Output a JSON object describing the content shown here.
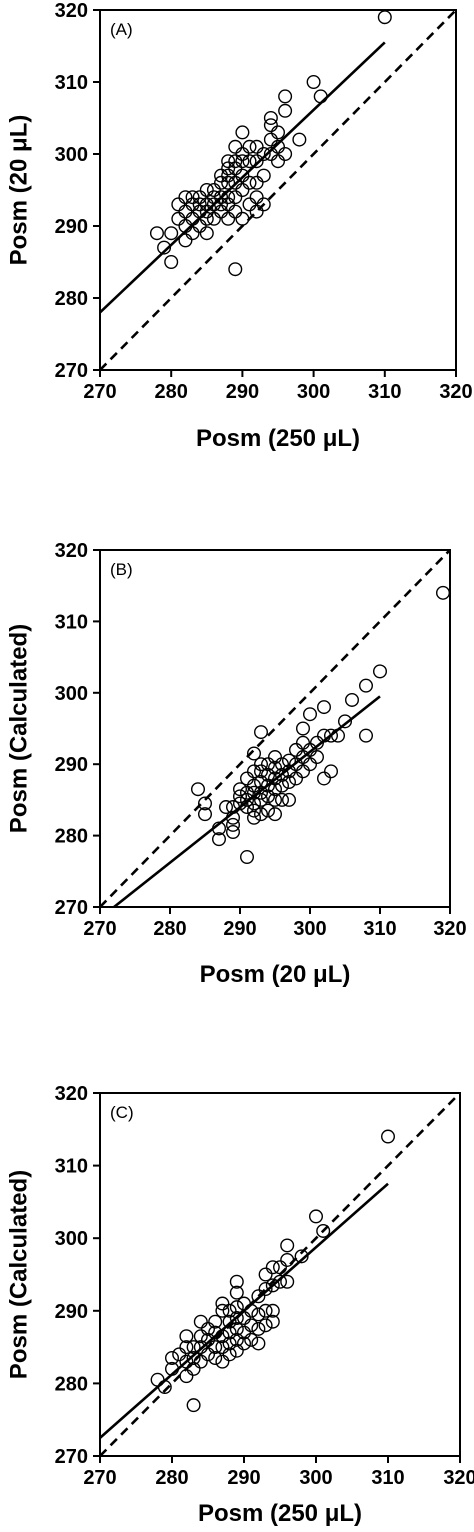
{
  "chart_data": [
    {
      "type": "scatter",
      "panel_label": "(A)",
      "xlabel": "Posm (250 μL)",
      "ylabel": "Posm (20 μL)",
      "xlim": [
        270,
        320
      ],
      "ylim": [
        270,
        320
      ],
      "xticks": [
        "270",
        "280",
        "290",
        "300",
        "310",
        "320"
      ],
      "yticks": [
        "270",
        "280",
        "290",
        "300",
        "310",
        "320"
      ],
      "series": [
        {
          "points": [
            [
              278,
              289
            ],
            [
              279,
              287
            ],
            [
              280,
              285
            ],
            [
              280,
              289
            ],
            [
              281,
              291
            ],
            [
              281,
              293
            ],
            [
              282,
              288
            ],
            [
              282,
              290
            ],
            [
              282,
              292
            ],
            [
              282,
              294
            ],
            [
              283,
              289
            ],
            [
              283,
              291
            ],
            [
              283,
              293
            ],
            [
              283,
              294
            ],
            [
              284,
              290
            ],
            [
              284,
              292
            ],
            [
              284,
              293
            ],
            [
              284,
              294
            ],
            [
              285,
              289
            ],
            [
              285,
              291
            ],
            [
              285,
              292
            ],
            [
              285,
              293
            ],
            [
              285,
              295
            ],
            [
              286,
              291
            ],
            [
              286,
              293
            ],
            [
              286,
              294
            ],
            [
              286,
              295
            ],
            [
              287,
              292
            ],
            [
              287,
              293
            ],
            [
              287,
              294
            ],
            [
              287,
              296
            ],
            [
              287,
              297
            ],
            [
              288,
              291
            ],
            [
              288,
              293
            ],
            [
              288,
              294
            ],
            [
              288,
              296
            ],
            [
              288,
              297
            ],
            [
              288,
              298
            ],
            [
              288,
              299
            ],
            [
              289,
              284
            ],
            [
              289,
              292
            ],
            [
              289,
              294
            ],
            [
              289,
              296
            ],
            [
              289,
              298
            ],
            [
              289,
              299
            ],
            [
              289,
              301
            ],
            [
              290,
              291
            ],
            [
              290,
              295
            ],
            [
              290,
              297
            ],
            [
              290,
              299
            ],
            [
              290,
              300
            ],
            [
              290,
              303
            ],
            [
              291,
              293
            ],
            [
              291,
              296
            ],
            [
              291,
              299
            ],
            [
              291,
              301
            ],
            [
              292,
              292
            ],
            [
              292,
              294
            ],
            [
              292,
              296
            ],
            [
              292,
              299
            ],
            [
              292,
              301
            ],
            [
              293,
              293
            ],
            [
              293,
              297
            ],
            [
              293,
              300
            ],
            [
              294,
              300
            ],
            [
              294,
              302
            ],
            [
              294,
              304
            ],
            [
              294,
              305
            ],
            [
              295,
              299
            ],
            [
              295,
              301
            ],
            [
              295,
              303
            ],
            [
              296,
              300
            ],
            [
              296,
              306
            ],
            [
              296,
              308
            ],
            [
              298,
              302
            ],
            [
              300,
              310
            ],
            [
              301,
              308
            ],
            [
              310,
              319
            ]
          ]
        }
      ],
      "regression_line": [
        [
          270,
          278
        ],
        [
          310,
          315.5
        ]
      ],
      "identity_line": [
        [
          270,
          270
        ],
        [
          320,
          320
        ]
      ]
    },
    {
      "type": "scatter",
      "panel_label": "(B)",
      "xlabel": "Posm (20 μL)",
      "ylabel": "Posm (Calculated)",
      "xlim": [
        270,
        320
      ],
      "ylim": [
        270,
        320
      ],
      "xticks": [
        "270",
        "280",
        "290",
        "300",
        "310",
        "320"
      ],
      "yticks": [
        "270",
        "280",
        "290",
        "300",
        "310",
        "320"
      ],
      "series": [
        {
          "points": [
            [
              284,
              286.5
            ],
            [
              285,
              283
            ],
            [
              285,
              284.5
            ],
            [
              287,
              279.5
            ],
            [
              287,
              281
            ],
            [
              288,
              284
            ],
            [
              289,
              280.5
            ],
            [
              289,
              281.5
            ],
            [
              289,
              282.5
            ],
            [
              289,
              284
            ],
            [
              290,
              284.5
            ],
            [
              290,
              285.5
            ],
            [
              290,
              286.5
            ],
            [
              291,
              277
            ],
            [
              291,
              284
            ],
            [
              291,
              285
            ],
            [
              291,
              286
            ],
            [
              291,
              288
            ],
            [
              292,
              282.5
            ],
            [
              292,
              283.5
            ],
            [
              292,
              284.5
            ],
            [
              292,
              286
            ],
            [
              292,
              287
            ],
            [
              292,
              289
            ],
            [
              292,
              291.5
            ],
            [
              293,
              283
            ],
            [
              293,
              285
            ],
            [
              293,
              286
            ],
            [
              293,
              287.5
            ],
            [
              293,
              289
            ],
            [
              293,
              290
            ],
            [
              293,
              294.5
            ],
            [
              294,
              283.5
            ],
            [
              294,
              285.5
            ],
            [
              294,
              287
            ],
            [
              294,
              288.5
            ],
            [
              294,
              290
            ],
            [
              295,
              283
            ],
            [
              295,
              285
            ],
            [
              295,
              286.5
            ],
            [
              295,
              288
            ],
            [
              295,
              289.5
            ],
            [
              295,
              291
            ],
            [
              296,
              285
            ],
            [
              296,
              287
            ],
            [
              296,
              288.5
            ],
            [
              296,
              290
            ],
            [
              297,
              285
            ],
            [
              297,
              287.5
            ],
            [
              297,
              289
            ],
            [
              297,
              290.5
            ],
            [
              298,
              288
            ],
            [
              298,
              290
            ],
            [
              298,
              292
            ],
            [
              299,
              289
            ],
            [
              299,
              291
            ],
            [
              299,
              293
            ],
            [
              299,
              295
            ],
            [
              300,
              290
            ],
            [
              300,
              292
            ],
            [
              300,
              297
            ],
            [
              301,
              291
            ],
            [
              301,
              293
            ],
            [
              302,
              288
            ],
            [
              302,
              294
            ],
            [
              302,
              298
            ],
            [
              303,
              289
            ],
            [
              303,
              294
            ],
            [
              304,
              294
            ],
            [
              305,
              296
            ],
            [
              306,
              299
            ],
            [
              308,
              294
            ],
            [
              308,
              301
            ],
            [
              310,
              303
            ],
            [
              319,
              314
            ]
          ]
        }
      ],
      "regression_line": [
        [
          272,
          270
        ],
        [
          310,
          299.5
        ]
      ],
      "identity_line": [
        [
          270,
          270
        ],
        [
          320,
          320
        ]
      ]
    },
    {
      "type": "scatter",
      "panel_label": "(C)",
      "xlabel": "Posm (250 μL)",
      "ylabel": "Posm (Calculated)",
      "xlim": [
        270,
        320
      ],
      "ylim": [
        270,
        320
      ],
      "xticks": [
        "270",
        "280",
        "290",
        "300",
        "310",
        "320"
      ],
      "yticks": [
        "270",
        "280",
        "290",
        "300",
        "310",
        "320"
      ],
      "series": [
        {
          "points": [
            [
              278,
              280.5
            ],
            [
              279,
              279.5
            ],
            [
              280,
              282
            ],
            [
              280,
              283.5
            ],
            [
              281,
              284
            ],
            [
              282,
              281
            ],
            [
              282,
              283
            ],
            [
              282,
              285
            ],
            [
              282,
              286.5
            ],
            [
              283,
              277
            ],
            [
              283,
              282
            ],
            [
              283,
              283.5
            ],
            [
              283,
              285
            ],
            [
              284,
              283
            ],
            [
              284,
              285
            ],
            [
              284,
              286.5
            ],
            [
              284,
              288.5
            ],
            [
              285,
              284
            ],
            [
              285,
              286
            ],
            [
              285,
              287.5
            ],
            [
              286,
              283.5
            ],
            [
              286,
              285
            ],
            [
              286,
              287
            ],
            [
              286,
              288.5
            ],
            [
              287,
              283
            ],
            [
              287,
              285
            ],
            [
              287,
              286.5
            ],
            [
              287,
              290
            ],
            [
              287,
              291
            ],
            [
              288,
              284
            ],
            [
              288,
              285.5
            ],
            [
              288,
              287
            ],
            [
              288,
              288.5
            ],
            [
              288,
              290
            ],
            [
              289,
              284.5
            ],
            [
              289,
              286
            ],
            [
              289,
              287.5
            ],
            [
              289,
              289
            ],
            [
              289,
              290.5
            ],
            [
              289,
              292.5
            ],
            [
              289,
              294
            ],
            [
              290,
              285.5
            ],
            [
              290,
              287
            ],
            [
              290,
              289
            ],
            [
              290,
              291
            ],
            [
              291,
              286
            ],
            [
              291,
              288
            ],
            [
              291,
              290
            ],
            [
              292,
              285.5
            ],
            [
              292,
              287.5
            ],
            [
              292,
              289.5
            ],
            [
              292,
              292
            ],
            [
              293,
              288
            ],
            [
              293,
              290
            ],
            [
              293,
              293
            ],
            [
              293,
              295
            ],
            [
              294,
              288.5
            ],
            [
              294,
              290
            ],
            [
              294,
              293.5
            ],
            [
              294,
              296
            ],
            [
              295,
              294
            ],
            [
              295,
              296
            ],
            [
              296,
              294
            ],
            [
              296,
              297
            ],
            [
              296,
              299
            ],
            [
              298,
              297.5
            ],
            [
              300,
              303
            ],
            [
              301,
              301
            ],
            [
              310,
              314
            ]
          ]
        }
      ],
      "regression_line": [
        [
          270,
          272.5
        ],
        [
          310,
          307.5
        ]
      ],
      "identity_line": [
        [
          270,
          270
        ],
        [
          320,
          320
        ]
      ]
    }
  ]
}
